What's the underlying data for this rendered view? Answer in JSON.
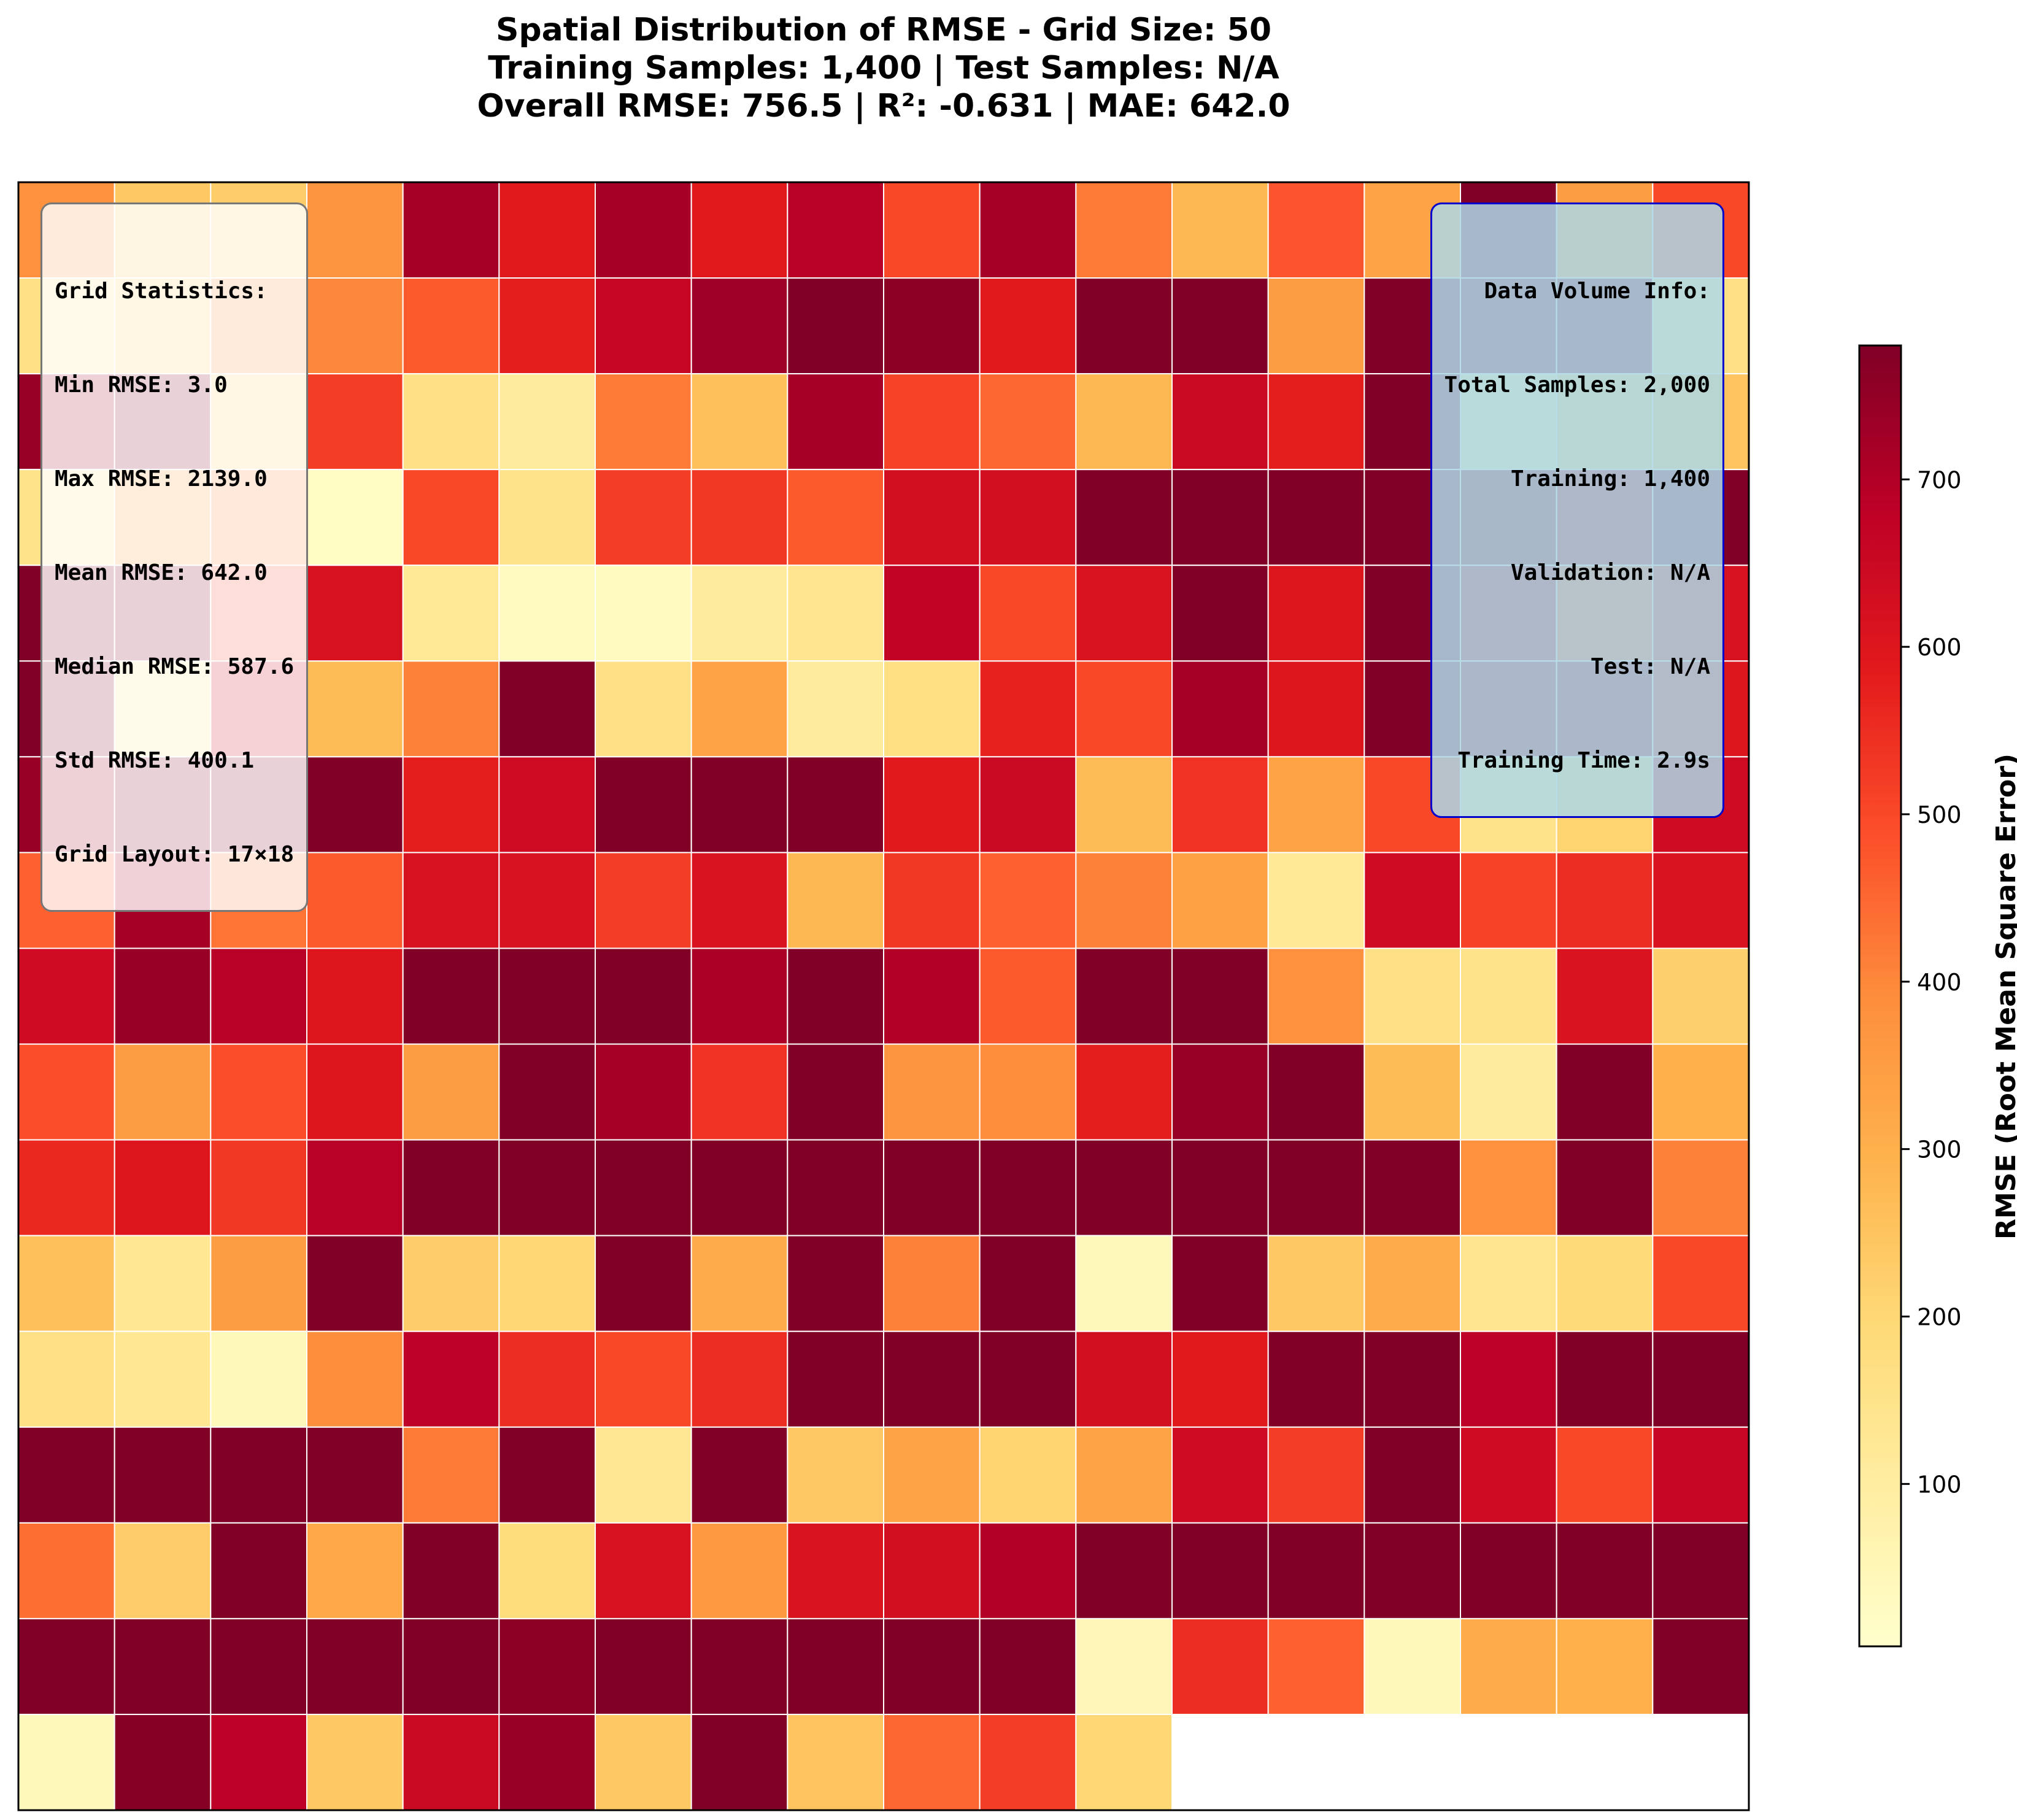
{
  "title_lines": [
    "Spatial Distribution of RMSE - Grid Size: 50",
    "Training Samples: 1,400 | Test Samples: N/A",
    "Overall RMSE: 756.5 | R²: -0.631 | MAE: 642.0"
  ],
  "grid_stats": {
    "header": "Grid Statistics:",
    "lines": [
      "Min RMSE: 3.0",
      "Max RMSE: 2139.0",
      "Mean RMSE: 642.0",
      "Median RMSE: 587.6",
      "Std RMSE: 400.1",
      "Grid Layout: 17×18"
    ]
  },
  "volume_info": {
    "header": "Data Volume Info:",
    "lines": [
      "Total Samples: 2,000",
      "Training: 1,400",
      "Validation: N/A",
      "Test: N/A",
      "Training Time: 2.9s"
    ]
  },
  "colorbar": {
    "label": "RMSE (Root Mean Square Error)",
    "ticks": [
      100,
      200,
      300,
      400,
      500,
      600,
      700
    ],
    "min": 3,
    "max": 780,
    "colormap": "YlOrRd"
  },
  "chart_data": {
    "type": "heatmap",
    "rows": 17,
    "cols": 18,
    "values": [
      [
        380,
        240,
        230,
        370,
        720,
        590,
        720,
        590,
        690,
        500,
        720,
        420,
        280,
        480,
        330,
        780,
        350,
        500
      ],
      [
        160,
        230,
        380,
        400,
        470,
        580,
        660,
        730,
        780,
        760,
        590,
        780,
        780,
        350,
        780,
        780,
        780,
        160
      ],
      [
        740,
        780,
        230,
        520,
        160,
        110,
        420,
        260,
        720,
        510,
        450,
        280,
        650,
        580,
        780,
        120,
        210,
        250
      ],
      [
        150,
        360,
        400,
        20,
        500,
        150,
        520,
        530,
        470,
        630,
        630,
        780,
        780,
        780,
        780,
        760,
        680,
        780
      ],
      [
        780,
        780,
        500,
        620,
        120,
        30,
        30,
        110,
        140,
        670,
        500,
        610,
        780,
        600,
        780,
        690,
        490,
        620
      ],
      [
        780,
        130,
        650,
        270,
        410,
        780,
        160,
        330,
        110,
        170,
        570,
        500,
        720,
        600,
        780,
        740,
        740,
        600
      ],
      [
        740,
        780,
        780,
        780,
        580,
        640,
        780,
        780,
        780,
        590,
        650,
        270,
        540,
        330,
        500,
        150,
        210,
        640
      ],
      [
        460,
        720,
        430,
        470,
        620,
        620,
        520,
        610,
        280,
        530,
        460,
        410,
        340,
        120,
        640,
        510,
        550,
        610
      ],
      [
        640,
        740,
        690,
        600,
        780,
        780,
        780,
        710,
        780,
        700,
        470,
        780,
        780,
        380,
        160,
        150,
        610,
        220
      ],
      [
        490,
        350,
        490,
        600,
        350,
        780,
        720,
        540,
        780,
        370,
        390,
        580,
        740,
        780,
        270,
        110,
        780,
        300
      ],
      [
        560,
        600,
        530,
        690,
        780,
        780,
        780,
        780,
        780,
        780,
        780,
        780,
        780,
        780,
        780,
        380,
        780,
        410
      ],
      [
        260,
        130,
        350,
        780,
        230,
        200,
        780,
        310,
        780,
        410,
        780,
        40,
        780,
        240,
        310,
        140,
        190,
        500
      ],
      [
        160,
        130,
        40,
        390,
        680,
        550,
        500,
        550,
        780,
        780,
        780,
        630,
        590,
        780,
        780,
        680,
        780,
        780
      ],
      [
        780,
        780,
        780,
        780,
        420,
        780,
        130,
        780,
        240,
        330,
        210,
        330,
        640,
        520,
        780,
        640,
        500,
        660
      ],
      [
        440,
        230,
        780,
        320,
        780,
        180,
        620,
        360,
        610,
        630,
        700,
        780,
        780,
        780,
        780,
        780,
        780,
        780
      ],
      [
        780,
        780,
        780,
        780,
        780,
        760,
        780,
        780,
        780,
        780,
        780,
        50,
        550,
        460,
        40,
        310,
        300,
        780
      ],
      [
        40,
        770,
        680,
        240,
        650,
        740,
        240,
        780,
        250,
        450,
        520,
        200,
        null,
        null,
        null,
        null,
        null,
        null
      ]
    ]
  }
}
